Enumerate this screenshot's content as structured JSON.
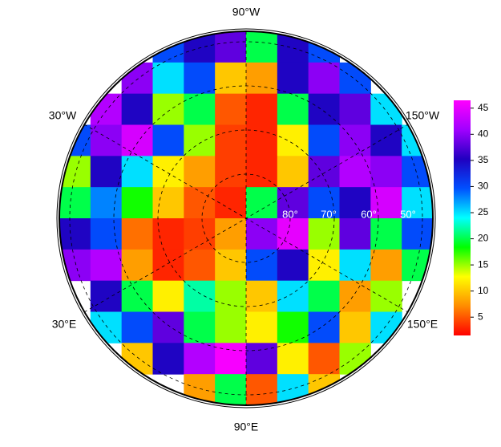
{
  "chart_data": {
    "type": "raster",
    "values": [
      [
        null,
        null,
        null,
        30,
        35,
        38,
        20,
        35,
        30,
        null,
        null,
        null
      ],
      [
        null,
        null,
        40,
        25,
        30,
        10,
        8,
        35,
        40,
        30,
        null,
        null
      ],
      [
        null,
        42,
        35,
        15,
        20,
        5,
        3,
        20,
        35,
        38,
        25,
        null
      ],
      [
        30,
        40,
        44,
        30,
        15,
        4,
        3,
        12,
        30,
        40,
        35,
        25
      ],
      [
        15,
        35,
        25,
        12,
        8,
        4,
        3,
        10,
        38,
        42,
        40,
        30
      ],
      [
        20,
        28,
        18,
        10,
        5,
        3,
        20,
        38,
        30,
        35,
        44,
        25
      ],
      [
        35,
        30,
        6,
        3,
        4,
        8,
        40,
        45,
        15,
        38,
        20,
        30
      ],
      [
        40,
        42,
        8,
        3,
        5,
        10,
        30,
        35,
        12,
        25,
        8,
        20
      ],
      [
        null,
        35,
        20,
        12,
        22,
        15,
        10,
        25,
        20,
        8,
        15,
        null
      ],
      [
        null,
        25,
        30,
        38,
        20,
        15,
        12,
        18,
        30,
        10,
        25,
        null
      ],
      [
        null,
        null,
        10,
        35,
        42,
        46,
        38,
        12,
        5,
        15,
        null,
        null
      ],
      [
        null,
        null,
        null,
        null,
        8,
        20,
        5,
        25,
        10,
        null,
        null,
        null
      ]
    ],
    "zlim": [
      1.5,
      46.5
    ],
    "colorbar_ticks": [
      5,
      10,
      15,
      20,
      25,
      30,
      35,
      40,
      45
    ],
    "colormap": [
      "#ff0000",
      "#ff8c00",
      "#ffff00",
      "#00ff00",
      "#00ffff",
      "#0050ff",
      "#2000c0",
      "#a000ff",
      "#ff00ff"
    ],
    "longitude_labels": [
      "90°W",
      "30°W",
      "150°W",
      "30°E",
      "150°E",
      "90°E"
    ],
    "latitude_labels": [
      "80°",
      "70°",
      "60°",
      "50°"
    ]
  }
}
